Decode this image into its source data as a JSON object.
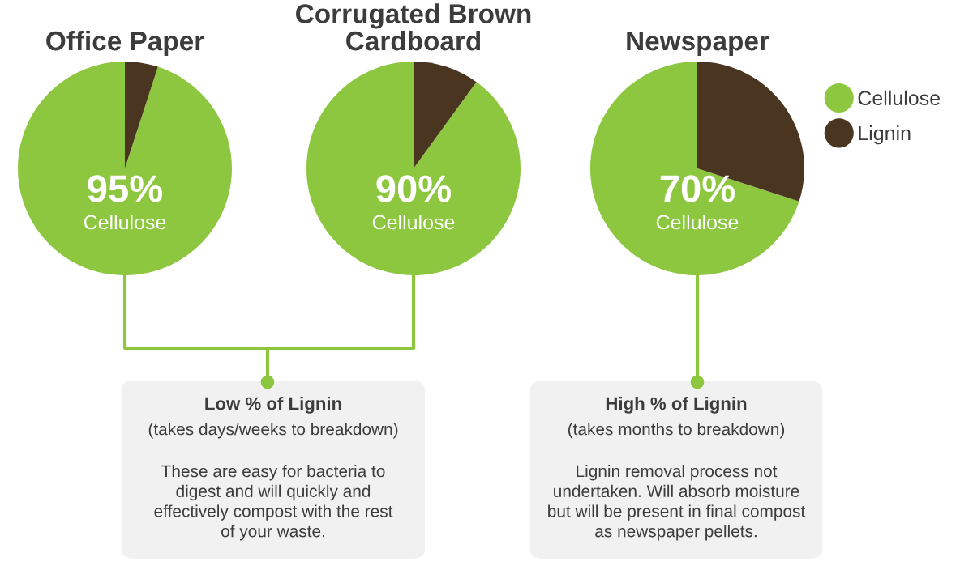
{
  "chart_data": [
    {
      "type": "pie",
      "title": "Office Paper",
      "categories": [
        "Cellulose",
        null
      ],
      "values": [
        95,
        5
      ],
      "colors": [
        "#8dc63f",
        "#4a3520"
      ],
      "value_labels": [
        "95%",
        null
      ],
      "annotations": [
        "Low % of Lignin",
        "(takes days/weeks to breakdown)",
        "These are easy for bacteria to\ndigest and will quickly and\neffectively compost with the rest\nof your waste."
      ]
    },
    {
      "type": "pie",
      "title": "Corrugated Brown\nCardboard",
      "categories": [
        "Cellulose",
        null
      ],
      "values": [
        90,
        10
      ],
      "colors": [
        "#8dc63f",
        "#4a3520"
      ],
      "value_labels": [
        "90%",
        null
      ]
    },
    {
      "type": "pie",
      "title": "Newspaper",
      "categories": [
        "Cellulose",
        "Lignin"
      ],
      "values": [
        70,
        30
      ],
      "colors": [
        "#8dc63f",
        "#4a3520"
      ],
      "value_labels": [
        "70%",
        null
      ],
      "legend": "right",
      "annotations": [
        "High % of Lignin",
        "(takes months to breakdown)",
        "Lignin removal process not\nundertaken. Will absorb moisture\nbut will be present in final compost\nas newspaper pellets."
      ]
    }
  ]
}
